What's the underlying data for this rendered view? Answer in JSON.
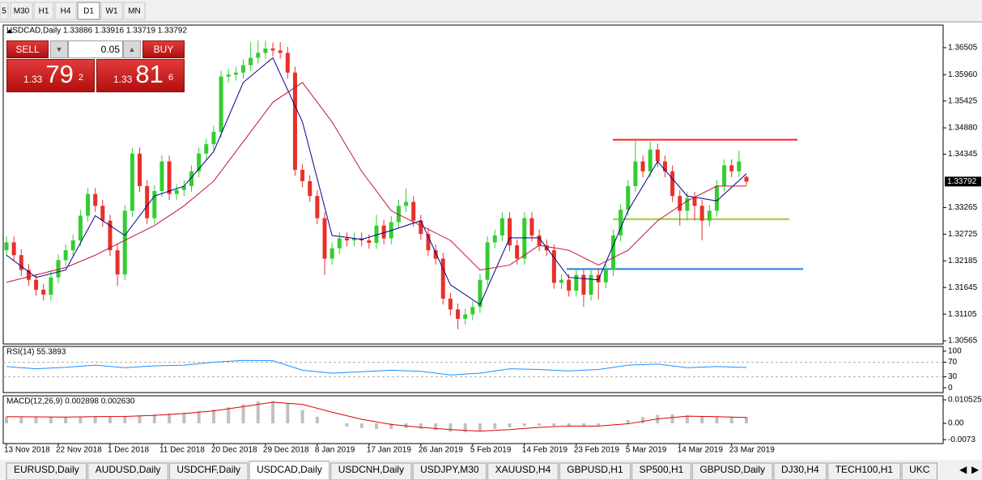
{
  "toolbar": {
    "timeframes": [
      "5",
      "M30",
      "H1",
      "H4",
      "D1",
      "W1",
      "MN"
    ],
    "active": 4
  },
  "trade_panel": {
    "sell": "SELL",
    "buy": "BUY",
    "lot": "0.05",
    "bid": {
      "prefix": "1.33",
      "big": "79",
      "point": "2"
    },
    "ask": {
      "prefix": "1.33",
      "big": "81",
      "point": "6"
    }
  },
  "tabs": {
    "items": [
      "EURUSD,Daily",
      "AUDUSD,Daily",
      "USDCHF,Daily",
      "USDCAD,Daily",
      "USDCNH,Daily",
      "USDJPY,M30",
      "XAUUSD,H4",
      "GBPUSD,H1",
      "SP500,H1",
      "GBPUSD,Daily",
      "DJ30,H4",
      "TECH100,H1",
      "UKC"
    ],
    "active": 3
  },
  "chart_data": [
    {
      "type": "candlestick",
      "title": "USDCAD,Daily 1.33886 1.33916 1.33719 1.33792",
      "up_color": "#32cd32",
      "down_color": "#e8302a",
      "categories": [
        "13 Nov 2018",
        null,
        null,
        null,
        null,
        null,
        null,
        "22 Nov 2018",
        null,
        null,
        null,
        null,
        null,
        null,
        "1 Dec 2018",
        null,
        null,
        null,
        null,
        null,
        null,
        "11 Dec 2018",
        null,
        null,
        null,
        null,
        null,
        null,
        "20 Dec 2018",
        null,
        null,
        null,
        null,
        null,
        null,
        "29 Dec 2018",
        null,
        null,
        null,
        null,
        null,
        null,
        "8 Jan 2019",
        null,
        null,
        null,
        null,
        null,
        null,
        "17 Jan 2019",
        null,
        null,
        null,
        null,
        null,
        null,
        "26 Jan 2019",
        null,
        null,
        null,
        null,
        null,
        null,
        "5 Feb 2019",
        null,
        null,
        null,
        null,
        null,
        null,
        "14 Feb 2019",
        null,
        null,
        null,
        null,
        null,
        null,
        "23 Feb 2019",
        null,
        null,
        null,
        null,
        null,
        null,
        "5 Mar 2019",
        null,
        null,
        null,
        null,
        null,
        null,
        "14 Mar 2019",
        null,
        null,
        null,
        null,
        null,
        null,
        "23 Mar 2019",
        null,
        null
      ],
      "candles": [
        [
          1.324,
          1.3268,
          1.3228,
          1.3256
        ],
        [
          1.3256,
          1.3268,
          1.3218,
          1.323
        ],
        [
          1.323,
          1.3242,
          1.3188,
          1.32
        ],
        [
          1.32,
          1.3212,
          1.3168,
          1.318
        ],
        [
          1.318,
          1.3192,
          1.3148,
          1.316
        ],
        [
          1.316,
          1.3172,
          1.3138,
          1.315
        ],
        [
          1.315,
          1.3197,
          1.3138,
          1.3185
        ],
        [
          1.3185,
          1.3232,
          1.3173,
          1.322
        ],
        [
          1.322,
          1.3252,
          1.3208,
          1.324
        ],
        [
          1.324,
          1.3272,
          1.3228,
          1.326
        ],
        [
          1.326,
          1.3322,
          1.3248,
          1.331
        ],
        [
          1.331,
          1.3366,
          1.3298,
          1.3354
        ],
        [
          1.3354,
          1.3366,
          1.3318,
          1.333
        ],
        [
          1.333,
          1.3342,
          1.3288,
          1.33
        ],
        [
          1.33,
          1.3312,
          1.3228,
          1.324
        ],
        [
          1.324,
          1.3252,
          1.3168,
          1.3191
        ],
        [
          1.3191,
          1.3332,
          1.3179,
          1.332
        ],
        [
          1.332,
          1.3448,
          1.3308,
          1.3436
        ],
        [
          1.3436,
          1.3448,
          1.3358,
          1.337
        ],
        [
          1.337,
          1.3382,
          1.3293,
          1.3305
        ],
        [
          1.3305,
          1.3372,
          1.3293,
          1.336
        ],
        [
          1.336,
          1.3432,
          1.3348,
          1.342
        ],
        [
          1.342,
          1.3432,
          1.3342,
          1.3354
        ],
        [
          1.3354,
          1.3374,
          1.3342,
          1.3362
        ],
        [
          1.3362,
          1.3382,
          1.335,
          1.337
        ],
        [
          1.337,
          1.3412,
          1.3358,
          1.34
        ],
        [
          1.34,
          1.3448,
          1.3388,
          1.3436
        ],
        [
          1.3436,
          1.3467,
          1.3424,
          1.3455
        ],
        [
          1.3455,
          1.3492,
          1.3443,
          1.348
        ],
        [
          1.348,
          1.3604,
          1.3468,
          1.3592
        ],
        [
          1.3592,
          1.3608,
          1.358,
          1.3596
        ],
        [
          1.3596,
          1.3612,
          1.3584,
          1.36
        ],
        [
          1.36,
          1.3627,
          1.3588,
          1.3615
        ],
        [
          1.3615,
          1.3662,
          1.3603,
          1.363
        ],
        [
          1.363,
          1.3665,
          1.3618,
          1.364
        ],
        [
          1.364,
          1.3665,
          1.3628,
          1.3649
        ],
        [
          1.3649,
          1.3661,
          1.3633,
          1.3645
        ],
        [
          1.3645,
          1.3662,
          1.3628,
          1.364
        ],
        [
          1.364,
          1.3652,
          1.3588,
          1.36
        ],
        [
          1.36,
          1.3612,
          1.3391,
          1.3403
        ],
        [
          1.3403,
          1.3415,
          1.3368,
          1.338
        ],
        [
          1.338,
          1.3392,
          1.3338,
          1.335
        ],
        [
          1.335,
          1.3362,
          1.3293,
          1.3305
        ],
        [
          1.3305,
          1.3317,
          1.319,
          1.3223
        ],
        [
          1.3223,
          1.3256,
          1.3211,
          1.3244
        ],
        [
          1.3244,
          1.3276,
          1.3232,
          1.3264
        ],
        [
          1.3264,
          1.3276,
          1.3248,
          1.326
        ],
        [
          1.326,
          1.3276,
          1.3248,
          1.3264
        ],
        [
          1.3264,
          1.3276,
          1.3248,
          1.326
        ],
        [
          1.326,
          1.3272,
          1.3243,
          1.3255
        ],
        [
          1.3255,
          1.3312,
          1.3243,
          1.329
        ],
        [
          1.329,
          1.3302,
          1.3252,
          1.3264
        ],
        [
          1.3264,
          1.3309,
          1.3252,
          1.3297
        ],
        [
          1.3297,
          1.3342,
          1.3285,
          1.333
        ],
        [
          1.333,
          1.3365,
          1.3318,
          1.3338
        ],
        [
          1.3338,
          1.335,
          1.3288,
          1.33
        ],
        [
          1.33,
          1.3312,
          1.3261,
          1.3273
        ],
        [
          1.3273,
          1.3285,
          1.3228,
          1.324
        ],
        [
          1.324,
          1.3252,
          1.3211,
          1.3223
        ],
        [
          1.3223,
          1.3235,
          1.313,
          1.3142
        ],
        [
          1.3142,
          1.3154,
          1.3108,
          1.312
        ],
        [
          1.312,
          1.3132,
          1.308,
          1.3101
        ],
        [
          1.3101,
          1.3122,
          1.3089,
          1.311
        ],
        [
          1.311,
          1.3137,
          1.3098,
          1.3125
        ],
        [
          1.3125,
          1.3192,
          1.3113,
          1.318
        ],
        [
          1.318,
          1.3268,
          1.3168,
          1.3256
        ],
        [
          1.3256,
          1.3282,
          1.3244,
          1.327
        ],
        [
          1.327,
          1.3317,
          1.3258,
          1.3305
        ],
        [
          1.3305,
          1.3317,
          1.3238,
          1.325
        ],
        [
          1.325,
          1.3262,
          1.3211,
          1.3223
        ],
        [
          1.3223,
          1.3317,
          1.3211,
          1.3305
        ],
        [
          1.3305,
          1.3317,
          1.3258,
          1.327
        ],
        [
          1.327,
          1.3282,
          1.3238,
          1.325
        ],
        [
          1.325,
          1.3262,
          1.3228,
          1.324
        ],
        [
          1.324,
          1.3252,
          1.3162,
          1.3174
        ],
        [
          1.3174,
          1.3192,
          1.3162,
          1.318
        ],
        [
          1.318,
          1.3192,
          1.3146,
          1.3158
        ],
        [
          1.3158,
          1.3202,
          1.3146,
          1.319
        ],
        [
          1.319,
          1.3202,
          1.3125,
          1.315
        ],
        [
          1.315,
          1.3202,
          1.3138,
          1.319
        ],
        [
          1.319,
          1.3202,
          1.314,
          1.3175
        ],
        [
          1.3175,
          1.3212,
          1.3163,
          1.32
        ],
        [
          1.32,
          1.3282,
          1.3188,
          1.327
        ],
        [
          1.327,
          1.3334,
          1.3258,
          1.3322
        ],
        [
          1.3322,
          1.3382,
          1.331,
          1.337
        ],
        [
          1.337,
          1.3465,
          1.3358,
          1.342
        ],
        [
          1.342,
          1.3432,
          1.3388,
          1.34
        ],
        [
          1.34,
          1.346,
          1.3388,
          1.3444
        ],
        [
          1.3444,
          1.3456,
          1.3408,
          1.342
        ],
        [
          1.342,
          1.3432,
          1.3388,
          1.34
        ],
        [
          1.34,
          1.3412,
          1.3338,
          1.335
        ],
        [
          1.335,
          1.3362,
          1.329,
          1.332
        ],
        [
          1.332,
          1.3358,
          1.33,
          1.3346
        ],
        [
          1.3346,
          1.3358,
          1.33,
          1.333
        ],
        [
          1.333,
          1.3342,
          1.326,
          1.33
        ],
        [
          1.33,
          1.3332,
          1.3288,
          1.332
        ],
        [
          1.332,
          1.3383,
          1.3308,
          1.3371
        ],
        [
          1.3371,
          1.3424,
          1.3359,
          1.3412
        ],
        [
          1.3412,
          1.3424,
          1.3388,
          1.34
        ],
        [
          1.34,
          1.3442,
          1.3388,
          1.342
        ],
        [
          1.33886,
          1.33916,
          1.33719,
          1.33792
        ]
      ],
      "series": [
        {
          "color": "#00008b",
          "x": [
            0,
            4,
            8,
            12,
            16,
            20,
            24,
            28,
            32,
            36,
            40,
            44,
            48,
            52,
            56,
            60,
            64,
            68,
            72,
            76,
            80,
            84,
            88,
            92,
            96,
            100
          ],
          "values": [
            1.323,
            1.3185,
            1.32,
            1.331,
            1.327,
            1.335,
            1.337,
            1.344,
            1.358,
            1.363,
            1.35,
            1.327,
            1.3262,
            1.328,
            1.33,
            1.317,
            1.313,
            1.3265,
            1.3265,
            1.3185,
            1.318,
            1.332,
            1.342,
            1.335,
            1.334,
            1.3395
          ]
        },
        {
          "color": "#c0143c",
          "x": [
            0,
            4,
            8,
            12,
            16,
            20,
            24,
            28,
            32,
            36,
            40,
            44,
            48,
            52,
            56,
            60,
            64,
            68,
            72,
            76,
            80,
            84,
            88,
            92,
            96,
            100
          ],
          "values": [
            1.3175,
            1.319,
            1.3205,
            1.323,
            1.326,
            1.329,
            1.333,
            1.338,
            1.346,
            1.354,
            1.358,
            1.35,
            1.34,
            1.332,
            1.329,
            1.326,
            1.32,
            1.321,
            1.325,
            1.324,
            1.321,
            1.324,
            1.33,
            1.334,
            1.337,
            1.337
          ]
        }
      ],
      "levels": [
        {
          "value": 1.3464,
          "color": "#ff2020"
        },
        {
          "value": 1.3303,
          "color": "#9acd32"
        },
        {
          "value": 1.3202,
          "color": "#1e7fd8"
        }
      ],
      "ylim": [
        1.305,
        1.36963
      ],
      "yticks": [
        1.36505,
        {
          "value": 1.3596,
          "label": "1.35960"
        },
        1.35425,
        {
          "value": 1.3488,
          "label": "1.34880"
        },
        1.34345,
        1.33265,
        1.32725,
        1.32185,
        1.31645,
        1.31105,
        1.30565
      ]
    },
    {
      "type": "line",
      "title": "RSI(14) 55.3893",
      "series": [
        {
          "color": "#1e90ff",
          "x": [
            0,
            4,
            8,
            12,
            16,
            20,
            24,
            28,
            32,
            36,
            40,
            44,
            48,
            52,
            56,
            60,
            64,
            68,
            72,
            76,
            80,
            84,
            88,
            92,
            96,
            100
          ],
          "values": [
            58,
            52,
            56,
            62,
            55,
            60,
            62,
            70,
            75,
            74,
            48,
            40,
            44,
            48,
            45,
            35,
            40,
            52,
            50,
            46,
            50,
            62,
            65,
            55,
            58,
            55.3893
          ]
        }
      ],
      "levels": [
        {
          "value": 70,
          "color": "#b0b0b0",
          "dash": true
        },
        {
          "value": 30,
          "color": "#b0b0b0",
          "dash": true
        }
      ],
      "ylim": [
        -13,
        113
      ],
      "yticks": [
        100,
        70,
        30,
        0
      ]
    },
    {
      "type": "macd",
      "title": "MACD(12,26,9) 0.002898 0.002630",
      "histogram": {
        "color": "#c0c0c0",
        "x": [
          0,
          2,
          4,
          6,
          8,
          10,
          12,
          14,
          16,
          18,
          20,
          22,
          24,
          26,
          28,
          30,
          32,
          34,
          36,
          38,
          40,
          42,
          44,
          46,
          48,
          50,
          52,
          54,
          56,
          58,
          60,
          62,
          64,
          66,
          68,
          70,
          72,
          74,
          76,
          78,
          80,
          82,
          84,
          86,
          88,
          90,
          92,
          94,
          96,
          98,
          100
        ],
        "values": [
          0.003,
          0.003,
          0.0028,
          0.0027,
          0.0028,
          0.003,
          0.0032,
          0.003,
          0.0032,
          0.0036,
          0.004,
          0.0044,
          0.0048,
          0.0055,
          0.0062,
          0.0072,
          0.0085,
          0.0098,
          0.01,
          0.009,
          0.006,
          0.003,
          0.0,
          -0.0015,
          -0.0022,
          -0.0025,
          -0.0025,
          -0.0022,
          -0.0025,
          -0.003,
          -0.0038,
          -0.004,
          -0.0035,
          -0.0025,
          -0.0018,
          -0.0012,
          -0.001,
          -0.0012,
          -0.0014,
          -0.0013,
          -0.001,
          -0.0002,
          0.0015,
          0.0028,
          0.0038,
          0.004,
          0.0035,
          0.003,
          0.0028,
          0.003,
          0.002898
        ]
      },
      "series": [
        {
          "color": "#e00000",
          "x": [
            0,
            4,
            8,
            12,
            16,
            20,
            24,
            28,
            32,
            36,
            40,
            44,
            48,
            52,
            56,
            60,
            64,
            68,
            72,
            76,
            80,
            84,
            88,
            92,
            96,
            100
          ],
          "values": [
            0.003,
            0.0029,
            0.0028,
            0.003,
            0.0031,
            0.0036,
            0.0044,
            0.0056,
            0.0075,
            0.0095,
            0.0085,
            0.005,
            0.0018,
            -0.0005,
            -0.0018,
            -0.0028,
            -0.0035,
            -0.0028,
            -0.0018,
            -0.0012,
            -0.0012,
            -0.0002,
            0.002,
            0.0032,
            0.003,
            0.00263
          ]
        }
      ],
      "ylim": [
        -0.00907,
        0.01234
      ],
      "yticks": [
        0.010525,
        {
          "value": 0,
          "label": "0.00"
        },
        -0.0073
      ]
    }
  ]
}
